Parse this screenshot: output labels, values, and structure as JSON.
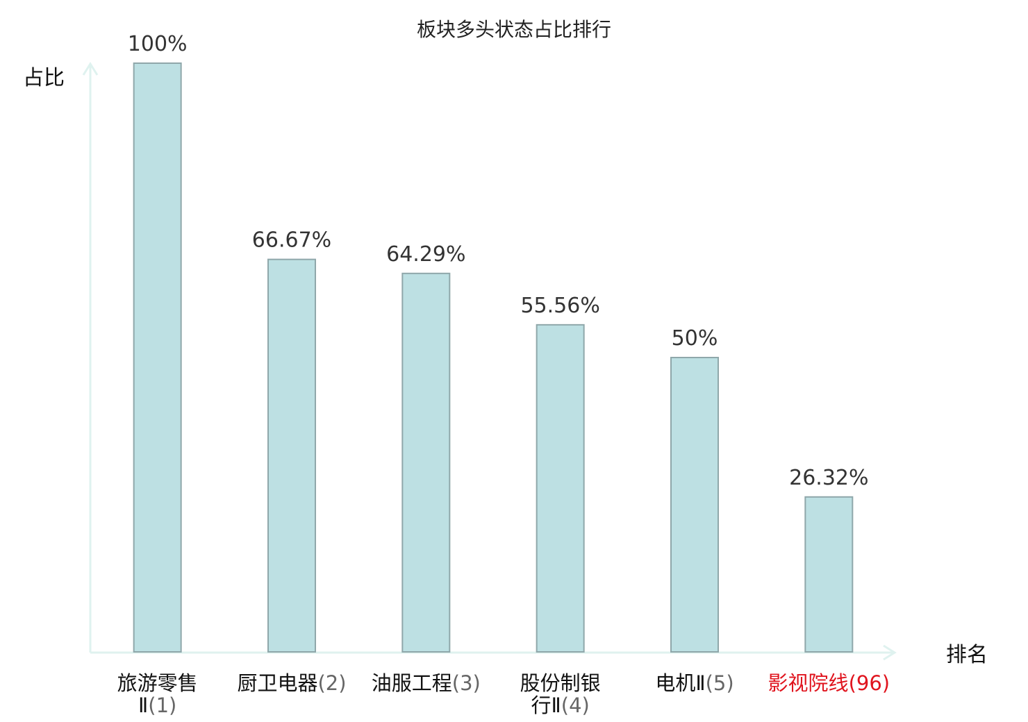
{
  "chart_data": {
    "type": "bar",
    "title": "板块多头状态占比排行",
    "ylabel": "占比",
    "xlabel": "排名",
    "ylim": [
      0,
      100
    ],
    "grid": false,
    "categories": [
      {
        "lines": [
          "旅游零售",
          "Ⅱ(1)"
        ],
        "highlight": false
      },
      {
        "lines": [
          "厨卫电器(2)"
        ],
        "highlight": false
      },
      {
        "lines": [
          "油服工程(3)"
        ],
        "highlight": false
      },
      {
        "lines": [
          "股份制银",
          "行Ⅱ(4)"
        ],
        "highlight": false
      },
      {
        "lines": [
          "电机Ⅱ(5)"
        ],
        "highlight": false
      },
      {
        "lines": [
          "影视院线(96)"
        ],
        "highlight": true
      }
    ],
    "values": [
      100,
      66.67,
      64.29,
      55.56,
      50,
      26.32
    ],
    "value_labels": [
      "100%",
      "66.67%",
      "64.29%",
      "55.56%",
      "50%",
      "26.32%"
    ],
    "colors": {
      "bar_fill": "#bde0e3",
      "bar_stroke": "#8fa7aa",
      "axis": "#dff2ef",
      "highlight": "#e0141e"
    }
  }
}
